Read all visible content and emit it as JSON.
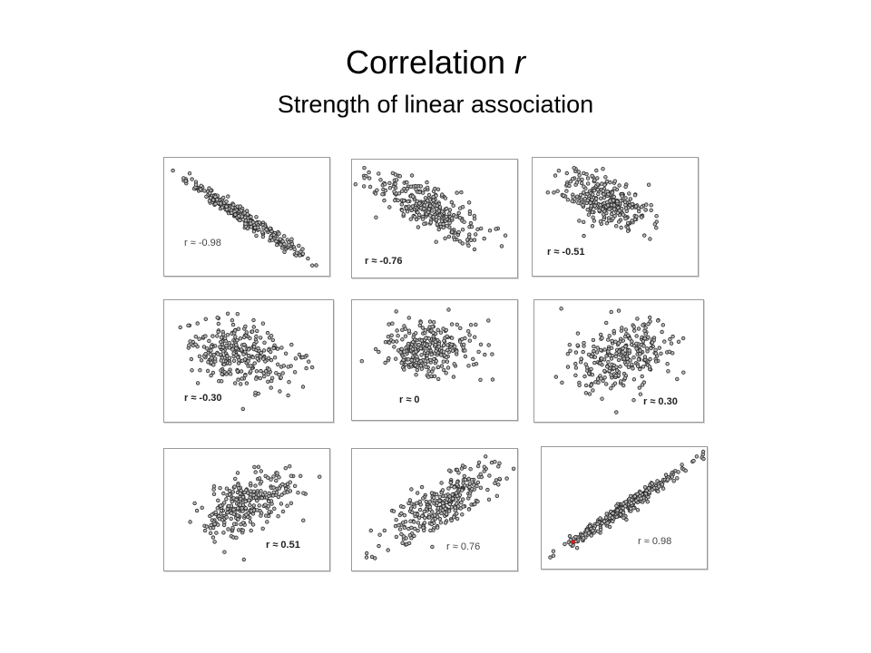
{
  "header": {
    "title_main": "Correlation ",
    "title_var": "r",
    "subtitle": "Strength of linear association"
  },
  "colors": {
    "point_fill": "#b8b8b8",
    "point_stroke": "#2a2a2a",
    "frame": "#9a9a9a",
    "highlight": "#d62020"
  },
  "chart_data": [
    {
      "type": "scatter",
      "r": -0.98,
      "label": "r ≈ -0.98",
      "n": 320,
      "center": [
        0.48,
        0.5
      ],
      "spread": 1.0
    },
    {
      "type": "scatter",
      "r": -0.76,
      "label": "r ≈ -0.76",
      "n": 300,
      "center": [
        0.45,
        0.4
      ],
      "spread": 1.0
    },
    {
      "type": "scatter",
      "r": -0.51,
      "label": "r ≈ -0.51",
      "n": 300,
      "center": [
        0.45,
        0.38
      ],
      "spread": 0.8
    },
    {
      "type": "scatter",
      "r": -0.3,
      "label": "r ≈ -0.30",
      "n": 300,
      "center": [
        0.45,
        0.45
      ],
      "spread": 0.9
    },
    {
      "type": "scatter",
      "r": 0.0,
      "label": "r ≈ 0",
      "n": 300,
      "center": [
        0.45,
        0.4
      ],
      "spread": 0.8
    },
    {
      "type": "scatter",
      "r": 0.3,
      "label": "r ≈ 0.30",
      "n": 300,
      "center": [
        0.5,
        0.45
      ],
      "spread": 0.9
    },
    {
      "type": "scatter",
      "r": 0.51,
      "label": "r ≈ 0.51",
      "n": 300,
      "center": [
        0.5,
        0.45
      ],
      "spread": 0.8
    },
    {
      "type": "scatter",
      "r": 0.76,
      "label": "r ≈ 0.76",
      "n": 300,
      "center": [
        0.55,
        0.45
      ],
      "spread": 1.0
    },
    {
      "type": "scatter",
      "r": 0.98,
      "label": "r ≈ 0.98",
      "n": 320,
      "center": [
        0.5,
        0.5
      ],
      "spread": 1.0
    }
  ]
}
